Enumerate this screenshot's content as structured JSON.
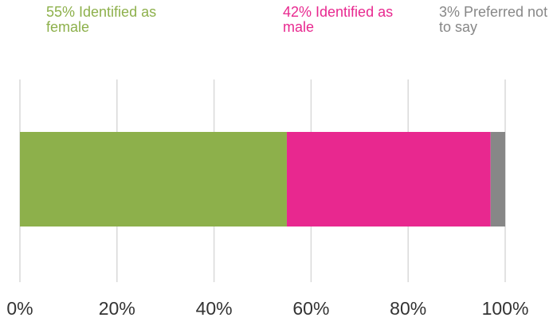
{
  "chart_data": {
    "type": "stacked-bar-horizontal",
    "series": [
      {
        "name": "55% Identified as female",
        "color": "#8db04b",
        "values": [
          55
        ]
      },
      {
        "name": "42% Identified as male",
        "color": "#e8288f",
        "values": [
          42
        ]
      },
      {
        "name": "3% Preferred not to say",
        "color": "#878787",
        "values": [
          3
        ]
      }
    ],
    "xlim": [
      0,
      100
    ],
    "xticks": [
      {
        "value": 0,
        "label": "0%"
      },
      {
        "value": 20,
        "label": "20%"
      },
      {
        "value": 40,
        "label": "40%"
      },
      {
        "value": 60,
        "label": "60%"
      },
      {
        "value": 80,
        "label": "80%"
      },
      {
        "value": 100,
        "label": "100%"
      }
    ],
    "grid": true
  }
}
